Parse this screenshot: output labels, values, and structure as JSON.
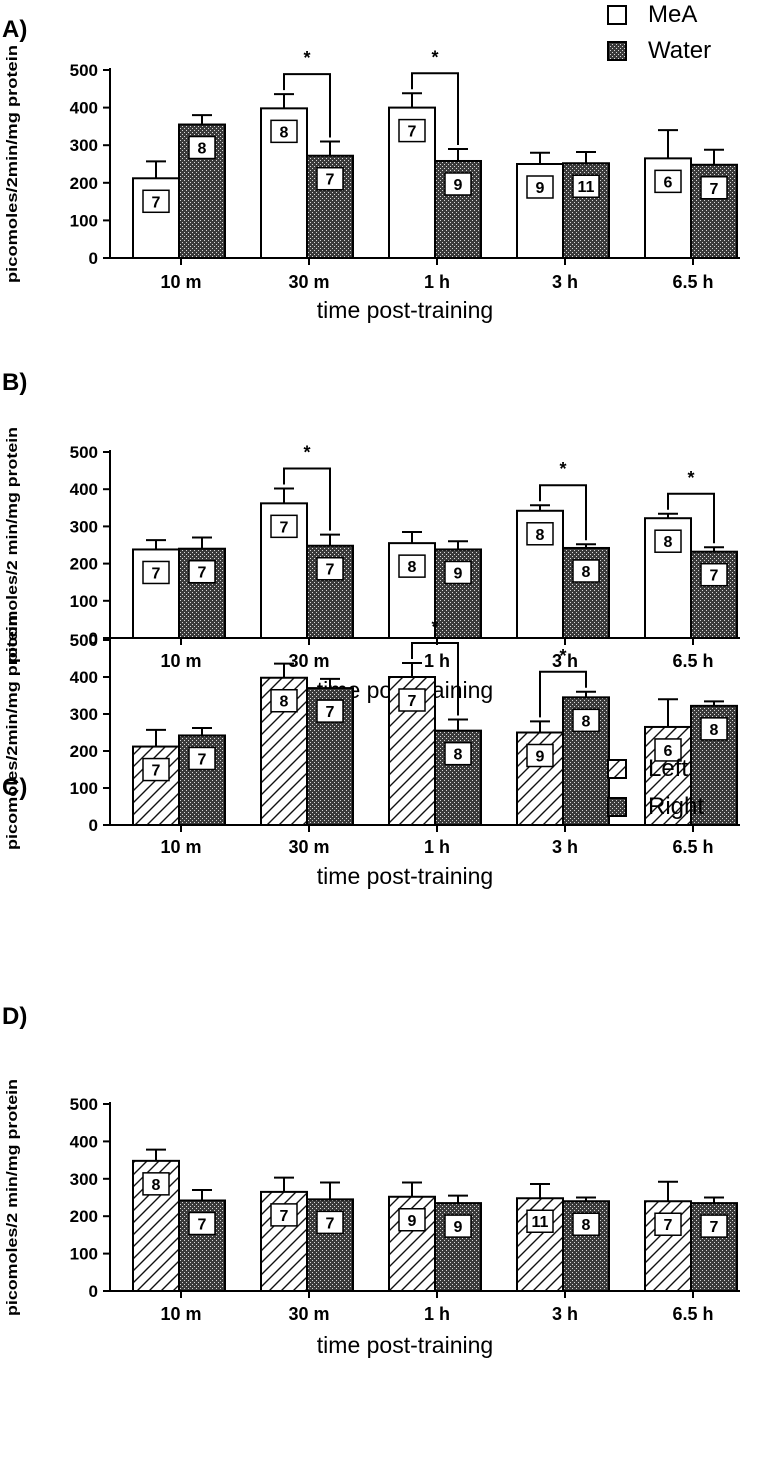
{
  "chart_data": [
    {
      "panel_label": "A)",
      "type": "bar",
      "categories": [
        "10 m",
        "30 m",
        "1 h",
        "3 h",
        "6.5 h"
      ],
      "ylabel": "picomoles/2min/mg protein",
      "xlabel": "time post-training",
      "ylim": [
        0,
        500
      ],
      "yticks": [
        "500",
        "400",
        "300",
        "200",
        "100",
        "0"
      ],
      "legend": [
        "MeA",
        "Water"
      ],
      "series": [
        {
          "name": "MeA",
          "style": "open",
          "values": [
            212,
            398,
            400,
            250,
            265
          ],
          "errors": [
            45,
            38,
            38,
            30,
            75
          ],
          "n": [
            "7",
            "8",
            "7",
            "9",
            "6"
          ]
        },
        {
          "name": "Water",
          "style": "stipple",
          "values": [
            355,
            272,
            258,
            252,
            248
          ],
          "errors": [
            25,
            38,
            32,
            30,
            40
          ],
          "n": [
            "8",
            "7",
            "9",
            "11",
            "7"
          ]
        }
      ],
      "significance": [
        {
          "group": 1,
          "label": "*"
        },
        {
          "group": 2,
          "label": "*"
        }
      ]
    },
    {
      "panel_label": "B)",
      "type": "bar",
      "categories": [
        "10 m",
        "30 m",
        "1 h",
        "3 h",
        "6.5 h"
      ],
      "ylabel": "picomoles/2 min/mg protein",
      "xlabel": "time post-training",
      "ylim": [
        0,
        500
      ],
      "yticks": [
        "500",
        "400",
        "300",
        "200",
        "100",
        "0"
      ],
      "legend": [],
      "series": [
        {
          "name": "MeA",
          "style": "open",
          "values": [
            238,
            362,
            255,
            342,
            322
          ],
          "errors": [
            25,
            40,
            30,
            15,
            12
          ],
          "n": [
            "7",
            "7",
            "8",
            "8",
            "8"
          ]
        },
        {
          "name": "Water",
          "style": "stipple",
          "values": [
            240,
            248,
            238,
            242,
            232
          ],
          "errors": [
            30,
            30,
            22,
            10,
            12
          ],
          "n": [
            "7",
            "7",
            "9",
            "8",
            "7"
          ]
        }
      ],
      "significance": [
        {
          "group": 1,
          "label": "*"
        },
        {
          "group": 3,
          "label": "*"
        },
        {
          "group": 4,
          "label": "*"
        }
      ]
    },
    {
      "panel_label": "C)",
      "type": "bar",
      "categories": [
        "10 m",
        "30 m",
        "1 h",
        "3 h",
        "6.5 h"
      ],
      "ylabel": "picomoles/2min/mg protein",
      "xlabel": "time post-training",
      "ylim": [
        0,
        500
      ],
      "yticks": [
        "500",
        "400",
        "300",
        "200",
        "100",
        "0"
      ],
      "legend": [
        "Left",
        "Right"
      ],
      "series": [
        {
          "name": "Left",
          "style": "hatch",
          "values": [
            212,
            398,
            400,
            250,
            265
          ],
          "errors": [
            45,
            38,
            38,
            30,
            75
          ],
          "n": [
            "7",
            "8",
            "7",
            "9",
            "6"
          ]
        },
        {
          "name": "Right",
          "style": "stipple",
          "values": [
            242,
            370,
            255,
            345,
            322
          ],
          "errors": [
            20,
            25,
            30,
            15,
            12
          ],
          "n": [
            "7",
            "7",
            "8",
            "8",
            "8"
          ]
        }
      ],
      "significance": [
        {
          "group": 2,
          "label": "*"
        },
        {
          "group": 3,
          "label": "*"
        }
      ]
    },
    {
      "panel_label": "D)",
      "type": "bar",
      "categories": [
        "10 m",
        "30 m",
        "1 h",
        "3 h",
        "6.5 h"
      ],
      "ylabel": "picomoles/2 min/mg protein",
      "xlabel": "time post-training",
      "ylim": [
        0,
        500
      ],
      "yticks": [
        "500",
        "400",
        "300",
        "200",
        "100",
        "0"
      ],
      "legend": [],
      "series": [
        {
          "name": "Left",
          "style": "hatch",
          "values": [
            348,
            265,
            252,
            248,
            240
          ],
          "errors": [
            30,
            38,
            38,
            38,
            52
          ],
          "n": [
            "8",
            "7",
            "9",
            "11",
            "7"
          ]
        },
        {
          "name": "Right",
          "style": "stipple",
          "values": [
            242,
            245,
            235,
            240,
            235
          ],
          "errors": [
            28,
            45,
            20,
            10,
            15
          ],
          "n": [
            "7",
            "7",
            "9",
            "8",
            "7"
          ]
        }
      ],
      "significance": []
    }
  ]
}
